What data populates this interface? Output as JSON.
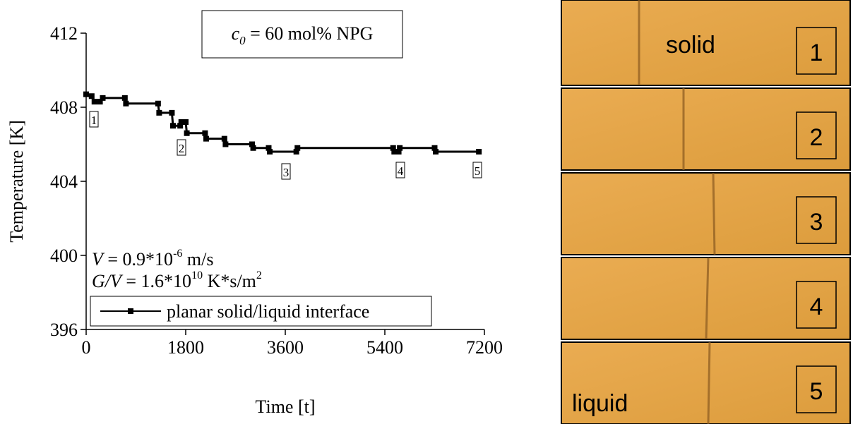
{
  "chart_data": {
    "type": "line",
    "title": {
      "var": "c",
      "sub": "0",
      "rest": " = 60 mol% NPG"
    },
    "x_label": "Time [t]",
    "y_label": "Temperature [K]",
    "x": [
      0,
      100,
      150,
      250,
      300,
      700,
      720,
      1300,
      1320,
      1550,
      1570,
      1700,
      1720,
      1800,
      1820,
      2150,
      2170,
      2500,
      2520,
      3000,
      3020,
      3300,
      3320,
      3800,
      3820,
      5550,
      5570,
      5650,
      5670,
      6300,
      6320,
      7100
    ],
    "series": [
      {
        "name": "planar solid/liquid interface",
        "color": "#000000",
        "values": [
          408.7,
          408.6,
          408.3,
          408.3,
          408.5,
          408.5,
          408.2,
          408.2,
          407.7,
          407.7,
          407.0,
          407.0,
          407.2,
          407.2,
          406.6,
          406.6,
          406.3,
          406.3,
          406.0,
          406.0,
          405.8,
          405.8,
          405.6,
          405.6,
          405.8,
          405.8,
          405.6,
          405.6,
          405.8,
          405.8,
          405.6,
          405.6
        ]
      }
    ],
    "xlim": [
      0,
      7200
    ],
    "xticks": [
      0,
      1800,
      3600,
      5400,
      7200
    ],
    "ylim": [
      396,
      412
    ],
    "yticks": [
      396,
      400,
      404,
      408,
      412
    ],
    "annotations": [
      "1",
      "2",
      "3",
      "4",
      "5"
    ],
    "conditions": [
      {
        "var": "V",
        "text": " = 0.9*10",
        "sup": "-6",
        "unit": " m/s"
      },
      {
        "var": "G/V",
        "text": " = 1.6*10",
        "sup": "10",
        "unit": " K*s/m",
        "unit_sup": "2"
      }
    ],
    "legend": "lower left"
  },
  "photos": [
    {
      "number": "1",
      "label": "solid"
    },
    {
      "number": "2"
    },
    {
      "number": "3"
    },
    {
      "number": "4"
    },
    {
      "number": "5",
      "label": "liquid"
    }
  ]
}
